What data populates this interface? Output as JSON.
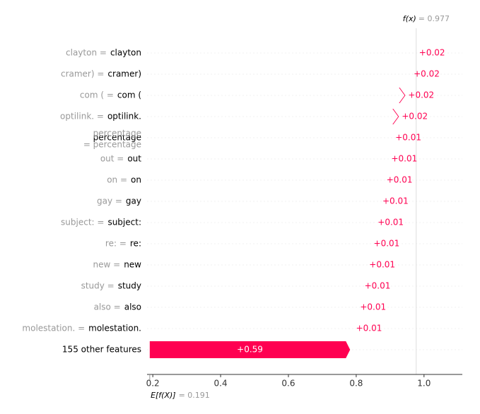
{
  "chart_data": {
    "type": "waterfall",
    "categories": [
      "clayton",
      "cramer)",
      "com (",
      "optilink.",
      "percentage",
      "out",
      "on",
      "gay",
      "subject:",
      "re:",
      "new",
      "study",
      "also",
      "molestation.",
      "155 other features"
    ],
    "feature_values": [
      "clayton  =",
      "cramer)  =",
      "com (  =",
      "optilink.  =",
      [
        "percentage",
        "= percentage"
      ],
      "out  =",
      "on  =",
      "gay  =",
      "subject:  =",
      "re:  =",
      "new  =",
      "study  =",
      "also  =",
      "molestation.  =",
      null
    ],
    "values": [
      0.016,
      0.016,
      0.019,
      0.019,
      0.012,
      0.014,
      0.012,
      0.014,
      0.012,
      0.013,
      0.014,
      0.013,
      0.012,
      0.009,
      0.591
    ],
    "value_labels": [
      "+0.02",
      "+0.02",
      "+0.02",
      "+0.02",
      "+0.01",
      "+0.01",
      "+0.01",
      "+0.01",
      "+0.01",
      "+0.01",
      "+0.01",
      "+0.01",
      "+0.01",
      "+0.01",
      "+0.59"
    ],
    "color": "#ff0051",
    "base": {
      "label": "E[f(X)]",
      "value": 0.191,
      "value_label": "= 0.191"
    },
    "output": {
      "label": "f(x)",
      "value": 0.977,
      "value_label": "= 0.977"
    },
    "xlim": [
      0.183,
      1.113
    ],
    "xticks": [
      0.2,
      0.4,
      0.6,
      0.8,
      {
        "value": 1,
        "label": "1.0"
      }
    ],
    "grid": true
  }
}
